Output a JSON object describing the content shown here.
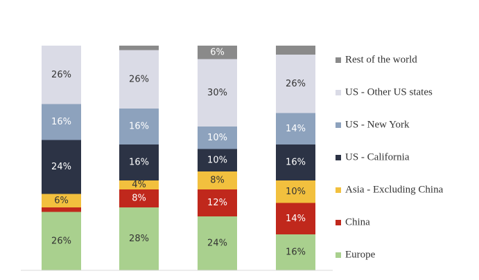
{
  "chart_data": {
    "type": "bar",
    "stacked": true,
    "categories": [
      "",
      "",
      "",
      ""
    ],
    "title": "",
    "xlabel": "",
    "ylabel": "",
    "ylim": [
      0,
      100
    ],
    "grid": false,
    "legend_position": "right",
    "series": [
      {
        "name": "Europe",
        "color": "#a9d08e",
        "values": [
          26,
          28,
          24,
          16
        ],
        "labels": [
          "26%",
          "28%",
          "24%",
          "16%"
        ],
        "label_color": "#333333"
      },
      {
        "name": "China",
        "color": "#c0281c",
        "values": [
          2,
          8,
          12,
          14
        ],
        "labels": [
          "",
          "8%",
          "12%",
          "14%"
        ],
        "label_color": "#ffffff"
      },
      {
        "name": "Asia - Excluding China",
        "color": "#f2c03e",
        "values": [
          6,
          4,
          8,
          10
        ],
        "labels": [
          "6%",
          "4%",
          "8%",
          "10%"
        ],
        "label_color": "#333333"
      },
      {
        "name": "US - California",
        "color": "#2c3345",
        "values": [
          24,
          16,
          10,
          16
        ],
        "labels": [
          "24%",
          "16%",
          "10%",
          "16%"
        ],
        "label_color": "#ffffff"
      },
      {
        "name": "US - New York",
        "color": "#8da2bd",
        "values": [
          16,
          16,
          10,
          14
        ],
        "labels": [
          "16%",
          "16%",
          "10%",
          "14%"
        ],
        "label_color": "#ffffff"
      },
      {
        "name": "US - Other US states",
        "color": "#dadbe6",
        "values": [
          26,
          26,
          30,
          26
        ],
        "labels": [
          "26%",
          "26%",
          "30%",
          "26%"
        ],
        "label_color": "#333333"
      },
      {
        "name": "Rest of the world",
        "color": "#8a8a8a",
        "values": [
          0,
          2,
          6,
          4
        ],
        "labels": [
          "",
          "",
          "6%",
          ""
        ],
        "label_color": "#ffffff"
      }
    ]
  }
}
